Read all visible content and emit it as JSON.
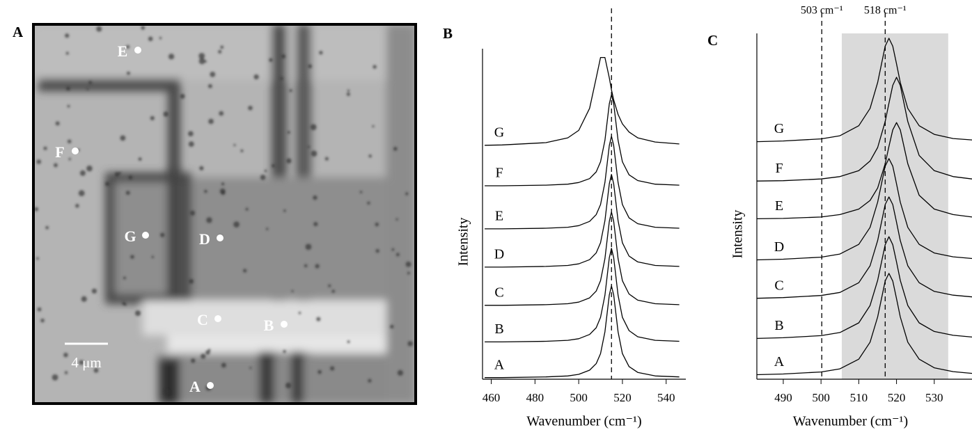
{
  "image_panel": {
    "label": "A",
    "points": [
      "E",
      "F",
      "G",
      "D",
      "C",
      "B",
      "A"
    ],
    "scale_bar": "4 μm"
  },
  "chart_data": [
    {
      "type": "line",
      "label": "B",
      "xlabel": "Wavenumber (cm⁻¹)",
      "ylabel": "Intensity",
      "x": [
        457,
        465,
        485,
        495,
        500,
        505,
        508,
        510,
        512,
        514,
        515,
        516,
        518,
        520,
        523,
        527,
        535,
        546
      ],
      "xlim": [
        456,
        549
      ],
      "xticks": [
        460,
        480,
        500,
        520,
        540
      ],
      "ylim": [
        0,
        102
      ],
      "vlines": [
        515
      ],
      "series": [
        {
          "name": "A",
          "color": "#000000",
          "values": [
            0.5,
            0.5,
            0.7,
            1.0,
            1.5,
            2.8,
            4.8,
            7.9,
            14.6,
            26.0,
            28.8,
            26.0,
            14.6,
            7.9,
            3.9,
            2.1,
            1.0,
            0.7
          ]
        },
        {
          "name": "B",
          "color": "#000000",
          "values": [
            11.5,
            11.5,
            11.7,
            12.0,
            12.5,
            13.8,
            15.9,
            19.1,
            25.9,
            37.5,
            40.4,
            37.5,
            25.9,
            19.1,
            15.0,
            13.1,
            12.0,
            11.7
          ]
        },
        {
          "name": "C",
          "color": "#000000",
          "values": [
            22.8,
            22.8,
            23.0,
            23.3,
            23.8,
            25.1,
            27.2,
            30.4,
            37.2,
            48.7,
            51.6,
            48.7,
            37.2,
            30.4,
            26.3,
            24.4,
            23.3,
            23.0
          ]
        },
        {
          "name": "D",
          "color": "#000000",
          "values": [
            34.6,
            34.6,
            34.8,
            35.1,
            35.6,
            36.9,
            39.0,
            42.1,
            48.9,
            60.3,
            63.2,
            60.3,
            48.9,
            42.1,
            38.0,
            36.2,
            35.1,
            34.8
          ]
        },
        {
          "name": "E",
          "color": "#000000",
          "values": [
            46.4,
            46.4,
            46.6,
            46.9,
            47.4,
            48.7,
            50.8,
            53.9,
            60.7,
            72.1,
            75.0,
            72.1,
            60.7,
            53.9,
            49.8,
            48.0,
            46.9,
            46.6
          ]
        },
        {
          "name": "F",
          "color": "#000000",
          "values": [
            59.7,
            59.7,
            59.9,
            60.2,
            60.7,
            61.9,
            64.0,
            67.1,
            73.7,
            85.0,
            87.8,
            85.0,
            73.7,
            67.1,
            63.1,
            61.3,
            60.2,
            59.9
          ]
        },
        {
          "name": "G",
          "color": "#000000",
          "values": [
            72.2,
            72.3,
            73.0,
            74.5,
            76.8,
            83.6,
            93.0,
            99.3,
            99.3,
            93.0,
            89.3,
            86.2,
            81.7,
            78.8,
            76.3,
            74.5,
            73.2,
            72.6
          ]
        }
      ]
    },
    {
      "type": "line",
      "label": "C",
      "xlabel": "Wavenumber (cm⁻¹)",
      "ylabel": "Intensity",
      "x": [
        483,
        490,
        500,
        505,
        510,
        513,
        515,
        517,
        518,
        519,
        520,
        521,
        523,
        526,
        530,
        535,
        540
      ],
      "xlim": [
        483,
        540
      ],
      "xticks": [
        490,
        500,
        510,
        520,
        530
      ],
      "ylim": [
        0,
        100
      ],
      "vlines": [
        500.2,
        517
      ],
      "annotations": [
        "503 cm⁻¹",
        "518 cm⁻¹"
      ],
      "shade": [
        505.5,
        533.7
      ],
      "series": [
        {
          "name": "A",
          "color": "#000000",
          "values": [
            1.3,
            1.5,
            2.1,
            3.0,
            5.8,
            10.7,
            18.0,
            28.4,
            30.6,
            28.4,
            23.3,
            18.0,
            10.7,
            5.8,
            3.3,
            2.2,
            1.7
          ]
        },
        {
          "name": "B",
          "color": "#000000",
          "values": [
            11.8,
            12.0,
            12.6,
            13.5,
            16.3,
            21.3,
            28.6,
            38.9,
            41.2,
            38.9,
            33.9,
            28.6,
            21.3,
            16.3,
            13.8,
            12.7,
            12.2
          ]
        },
        {
          "name": "C",
          "color": "#000000",
          "values": [
            23.4,
            23.6,
            24.2,
            25.1,
            27.9,
            32.8,
            40.1,
            50.5,
            52.7,
            50.5,
            45.4,
            40.1,
            32.8,
            27.9,
            25.4,
            24.3,
            23.8
          ]
        },
        {
          "name": "D",
          "color": "#000000",
          "values": [
            34.5,
            34.7,
            35.3,
            36.2,
            39.0,
            43.9,
            51.2,
            61.6,
            63.8,
            61.6,
            56.5,
            51.2,
            43.9,
            39.0,
            36.5,
            35.4,
            34.9
          ]
        },
        {
          "name": "E",
          "color": "#000000",
          "values": [
            46.4,
            46.5,
            46.9,
            47.6,
            49.2,
            51.7,
            55.3,
            62.3,
            67.3,
            72.1,
            74.2,
            72.1,
            62.3,
            53.2,
            49.2,
            47.6,
            46.9
          ]
        },
        {
          "name": "F",
          "color": "#000000",
          "values": [
            57.3,
            57.4,
            57.9,
            58.6,
            60.3,
            63.1,
            67.0,
            74.5,
            79.8,
            85.0,
            87.3,
            85.0,
            74.5,
            64.7,
            60.3,
            58.6,
            57.9
          ]
        },
        {
          "name": "G",
          "color": "#000000",
          "values": [
            68.7,
            68.9,
            69.5,
            70.4,
            73.3,
            78.3,
            85.8,
            96.3,
            98.6,
            96.3,
            91.2,
            85.8,
            78.3,
            73.3,
            70.8,
            69.6,
            69.2
          ]
        }
      ]
    }
  ]
}
